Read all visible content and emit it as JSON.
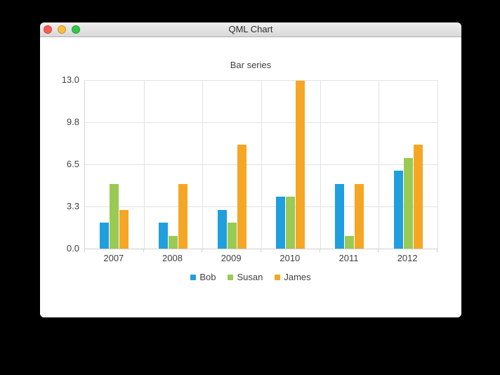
{
  "window": {
    "title": "QML Chart",
    "controls": {
      "close_color": "#fc5b53",
      "minimize_color": "#fdbd3f",
      "zoom_color": "#34c648"
    }
  },
  "chart_data": {
    "type": "bar",
    "title": "Bar series",
    "categories": [
      "2007",
      "2008",
      "2009",
      "2010",
      "2011",
      "2012"
    ],
    "series": [
      {
        "name": "Bob",
        "color": "#209fdf",
        "values": [
          2,
          2,
          3,
          4,
          5,
          6
        ]
      },
      {
        "name": "Susan",
        "color": "#99ca53",
        "values": [
          5,
          1,
          2,
          4,
          1,
          7
        ]
      },
      {
        "name": "James",
        "color": "#f6a625",
        "values": [
          3,
          5,
          8,
          13,
          5,
          8
        ]
      }
    ],
    "ylim": [
      0,
      13
    ],
    "y_ticks": [
      {
        "value": 0,
        "label": "0.0"
      },
      {
        "value": 3.25,
        "label": "3.3"
      },
      {
        "value": 6.5,
        "label": "6.5"
      },
      {
        "value": 9.75,
        "label": "9.8"
      },
      {
        "value": 13,
        "label": "13.0"
      }
    ],
    "grid": true,
    "legend_position": "bottom"
  }
}
